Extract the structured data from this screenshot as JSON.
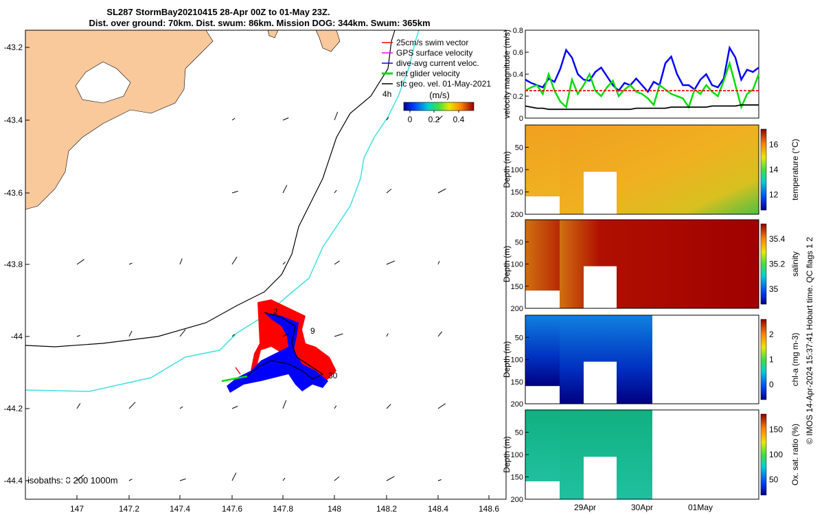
{
  "header": {
    "title_line1": "SL287 StormBay20210415 28-Apr 00Z to 01-May 23Z.",
    "title_line2": "Dist. over ground: 70km. Dist. swum: 86km. Mission DOG: 344km. Swum: 365km"
  },
  "map": {
    "x_ticks": [
      "147",
      "147.2",
      "147.4",
      "147.6",
      "147.8",
      "148",
      "148.2",
      "148.4",
      "148.6"
    ],
    "y_ticks": [
      "-43.2",
      "-43.4",
      "-43.6",
      "-43.8",
      "-44",
      "-44.2",
      "-44.4"
    ],
    "legend": [
      {
        "label": "25cm/s swim vector",
        "color": "#ff0000"
      },
      {
        "label": "GPS surface velocity",
        "color": "#ff00ff"
      },
      {
        "label": "dive-avg current veloc.",
        "color": "#0000ff"
      },
      {
        "label": "net glider velocity",
        "color": "#00dd00"
      },
      {
        "label": "sfc geo. vel. 01-May-2021",
        "color": "#000000"
      }
    ],
    "colorbar_label": "(m/s)",
    "colorbar_ticks": [
      "0",
      "0.2",
      "0.4"
    ],
    "isobaths_label": "isobaths: 0   200  1000m",
    "annotations": [
      "4h",
      "2",
      "9",
      "30"
    ],
    "colors": {
      "land": "#f9c89b",
      "isobath_200": "#000000",
      "isobath_1000": "#40e0e0",
      "track": "#0000ff",
      "track_fill": "#ff0000"
    }
  },
  "velocity_panel": {
    "ylabel": "velocity magnitude (m/s)",
    "y_ticks": [
      "0",
      "0.2",
      "0.4",
      "0.6",
      "0.8"
    ]
  },
  "sections": [
    {
      "name": "temperature",
      "cbar_label": "temperature (°C)",
      "cbar_ticks": [
        "12",
        "14",
        "16"
      ]
    },
    {
      "name": "salinity",
      "cbar_label": "salinity",
      "cbar_ticks": [
        "35",
        "35.2",
        "35.4"
      ]
    },
    {
      "name": "chl",
      "cbar_label": "chl-a (mg m-3)",
      "cbar_ticks": [
        "0",
        "1",
        "2"
      ]
    },
    {
      "name": "oxygen",
      "cbar_label": "Ox. sat. ratio (%)",
      "cbar_ticks": [
        "50",
        "100",
        "150"
      ]
    }
  ],
  "section_common": {
    "ylabel": "Depth (m)",
    "y_ticks": [
      "50",
      "100",
      "150",
      "200"
    ],
    "x_ticks": [
      "29Apr",
      "30Apr",
      "01May"
    ]
  },
  "footer_side_text": "© IMOS 14-Apr-2024 15:37:41 Hobart time. QC flags 1  2",
  "chart_data": [
    {
      "type": "line",
      "title": "velocity magnitude",
      "ylabel": "velocity magnitude (m/s)",
      "ylim": [
        0,
        0.8
      ],
      "x": [
        0,
        1,
        2,
        3,
        4,
        5,
        6,
        7,
        8,
        9,
        10,
        11,
        12,
        13,
        14,
        15,
        16,
        17,
        18,
        19,
        20,
        21,
        22,
        23,
        24,
        25,
        26,
        27,
        28,
        29,
        30,
        31,
        32,
        33,
        34,
        35,
        36,
        37,
        38,
        39,
        40
      ],
      "series": [
        {
          "name": "dive-avg current veloc.",
          "color": "#0000ff",
          "values": [
            0.35,
            0.32,
            0.3,
            0.28,
            0.36,
            0.33,
            0.45,
            0.62,
            0.55,
            0.4,
            0.35,
            0.34,
            0.42,
            0.46,
            0.38,
            0.3,
            0.25,
            0.32,
            0.3,
            0.36,
            0.3,
            0.24,
            0.33,
            0.3,
            0.5,
            0.56,
            0.4,
            0.3,
            0.3,
            0.26,
            0.35,
            0.4,
            0.3,
            0.28,
            0.36,
            0.64,
            0.55,
            0.35,
            0.44,
            0.42,
            0.46
          ]
        },
        {
          "name": "net glider velocity",
          "color": "#00dd00",
          "values": [
            0.25,
            0.28,
            0.3,
            0.22,
            0.4,
            0.25,
            0.15,
            0.1,
            0.35,
            0.22,
            0.3,
            0.4,
            0.25,
            0.2,
            0.28,
            0.34,
            0.2,
            0.26,
            0.3,
            0.24,
            0.22,
            0.18,
            0.12,
            0.3,
            0.26,
            0.22,
            0.2,
            0.18,
            0.1,
            0.26,
            0.22,
            0.3,
            0.24,
            0.2,
            0.34,
            0.5,
            0.3,
            0.1,
            0.22,
            0.26,
            0.4
          ]
        },
        {
          "name": "sfc geo. vel.",
          "color": "#000000",
          "values": [
            0.11,
            0.1,
            0.09,
            0.09,
            0.08,
            0.08,
            0.08,
            0.08,
            0.08,
            0.08,
            0.08,
            0.08,
            0.08,
            0.08,
            0.08,
            0.08,
            0.08,
            0.08,
            0.08,
            0.09,
            0.09,
            0.09,
            0.09,
            0.09,
            0.09,
            0.1,
            0.1,
            0.1,
            0.1,
            0.1,
            0.1,
            0.1,
            0.11,
            0.11,
            0.11,
            0.11,
            0.11,
            0.12,
            0.12,
            0.12,
            0.12
          ]
        },
        {
          "name": "25cm/s swim vector",
          "color": "#ff0000",
          "values": [
            0.25,
            0.25,
            0.25,
            0.25,
            0.25,
            0.25,
            0.25,
            0.25,
            0.25,
            0.25,
            0.25,
            0.25,
            0.25,
            0.25,
            0.25,
            0.25,
            0.25,
            0.25,
            0.25,
            0.25,
            0.25,
            0.25,
            0.25,
            0.25,
            0.25,
            0.25,
            0.25,
            0.25,
            0.25,
            0.25,
            0.25,
            0.25,
            0.25,
            0.25,
            0.25,
            0.25,
            0.25,
            0.25,
            0.25,
            0.25,
            0.25
          ]
        }
      ]
    },
    {
      "type": "heatmap",
      "title": "temperature",
      "ylabel": "Depth (m)",
      "ylim": [
        200,
        0
      ],
      "colorbar_range": [
        11,
        18
      ]
    },
    {
      "type": "heatmap",
      "title": "salinity",
      "ylabel": "Depth (m)",
      "ylim": [
        200,
        0
      ],
      "colorbar_range": [
        34.9,
        35.45
      ]
    },
    {
      "type": "heatmap",
      "title": "chl-a",
      "ylabel": "Depth (m)",
      "ylim": [
        200,
        0
      ],
      "colorbar_range": [
        0,
        2
      ]
    },
    {
      "type": "heatmap",
      "title": "oxygen saturation",
      "ylabel": "Depth (m)",
      "ylim": [
        200,
        0
      ],
      "colorbar_range": [
        20,
        175
      ]
    }
  ]
}
